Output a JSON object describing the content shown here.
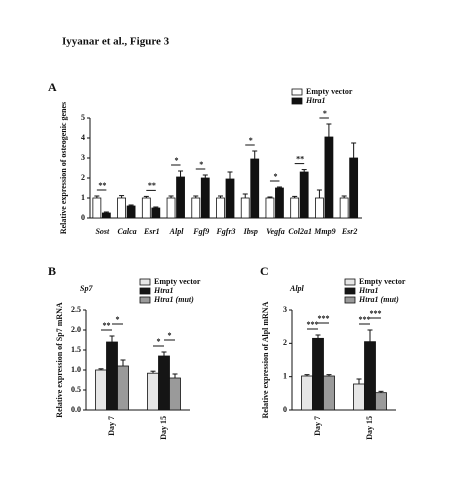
{
  "header": {
    "title": "Iyyanar et al., Figure 3"
  },
  "chart_data": [
    {
      "type": "bar",
      "panel_label": "A",
      "ylabel": "Relative expression of osteogenic genes",
      "categories": [
        "Sost",
        "Calca",
        "Esr1",
        "Alpl",
        "Fgf9",
        "Fgfr3",
        "Ibsp",
        "Vegfa",
        "Col2a1",
        "Mmp9",
        "Esr2"
      ],
      "series": [
        {
          "name": "Empty vector",
          "color": "#ffffff",
          "values": [
            1.0,
            1.0,
            1.0,
            1.0,
            1.0,
            1.0,
            1.0,
            1.0,
            1.0,
            1.0,
            1.0
          ],
          "errors": [
            0.1,
            0.12,
            0.08,
            0.1,
            0.1,
            0.1,
            0.2,
            0.05,
            0.08,
            0.4,
            0.1
          ]
        },
        {
          "name": "Htra1",
          "color": "#111111",
          "values": [
            0.25,
            0.6,
            0.5,
            2.05,
            2.0,
            1.95,
            2.95,
            1.5,
            2.3,
            4.05,
            3.0
          ],
          "errors": [
            0.05,
            0.05,
            0.05,
            0.3,
            0.15,
            0.35,
            0.4,
            0.05,
            0.12,
            0.65,
            0.75
          ]
        }
      ],
      "significance": [
        "**",
        null,
        "**",
        "*",
        "*",
        null,
        "*",
        "*",
        "**",
        "*",
        null
      ],
      "ylim": [
        0,
        5
      ],
      "yticks": [
        0,
        1,
        2,
        3,
        4,
        5
      ]
    },
    {
      "type": "bar",
      "panel_label": "B",
      "title": "Sp7",
      "ylabel": "Relative expression of Sp7 mRNA",
      "categories": [
        "Day 7",
        "Day 15"
      ],
      "series": [
        {
          "name": "Empty vector",
          "color": "#e6e6e6",
          "values": [
            1.0,
            0.92
          ],
          "errors": [
            0.03,
            0.05
          ]
        },
        {
          "name": "Htra1",
          "color": "#151515",
          "values": [
            1.7,
            1.35
          ],
          "errors": [
            0.15,
            0.1
          ]
        },
        {
          "name": "Htra1 (mut)",
          "color": "#9a9a9a",
          "values": [
            1.1,
            0.8
          ],
          "errors": [
            0.15,
            0.1
          ]
        }
      ],
      "significance": [
        [
          "**",
          "*"
        ],
        [
          "*",
          "*"
        ]
      ],
      "ylim": [
        0,
        2.5
      ],
      "yticks": [
        {
          "value": 0,
          "label": "0.0"
        },
        0.5,
        {
          "value": 1,
          "label": "1.0"
        },
        1.5,
        {
          "value": 2,
          "label": "2.0"
        },
        2.5
      ]
    },
    {
      "type": "bar",
      "panel_label": "C",
      "title": "Alpl",
      "ylabel": "Relative expression of Alpl mRNA",
      "categories": [
        "Day 7",
        "Day 15"
      ],
      "series": [
        {
          "name": "Empty vector",
          "color": "#e6e6e6",
          "values": [
            1.02,
            0.78
          ],
          "errors": [
            0.04,
            0.15
          ]
        },
        {
          "name": "Htra1",
          "color": "#151515",
          "values": [
            2.15,
            2.05
          ],
          "errors": [
            0.1,
            0.35
          ]
        },
        {
          "name": "Htra1 (mut)",
          "color": "#9a9a9a",
          "values": [
            1.02,
            0.52
          ],
          "errors": [
            0.04,
            0.04
          ]
        }
      ],
      "significance": [
        [
          "***",
          "***"
        ],
        [
          "***",
          "***"
        ]
      ],
      "ylim": [
        0,
        3
      ],
      "yticks": [
        0,
        1,
        2,
        3
      ]
    }
  ]
}
